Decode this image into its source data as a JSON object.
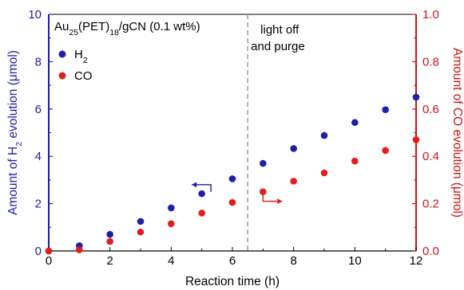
{
  "chart_data": {
    "type": "scatter",
    "title": "",
    "sample_label": {
      "prefix": "Au",
      "sub1": "25",
      "mid": "(PET)",
      "sub2": "18",
      "suffix": "/gCN (0.1 wt%)"
    },
    "xlabel": "Reaction time (h)",
    "ylabel_left": {
      "pre": "Amount of H",
      "sub": "2",
      "post": " evolution (μmol)"
    },
    "ylabel_right": "Amount of CO evolution (μmol)",
    "xlim": [
      0,
      12
    ],
    "ylim_left": [
      0,
      10
    ],
    "ylim_right": [
      0,
      1.0
    ],
    "x_ticks": [
      "0",
      "2",
      "4",
      "6",
      "8",
      "10",
      "12"
    ],
    "y_left_ticks": [
      "0",
      "2",
      "4",
      "6",
      "8",
      "10"
    ],
    "y_right_ticks": [
      "0.0",
      "0.2",
      "0.4",
      "0.6",
      "0.8",
      "1.0"
    ],
    "grid": false,
    "legend_position": "top-left",
    "legend_entries": [
      {
        "pre": "H",
        "sub": "2",
        "color": "#1f1fa8"
      },
      {
        "pre": "CO",
        "sub": "",
        "color": "#e31c1c"
      }
    ],
    "series": [
      {
        "name": "H2",
        "axis": "left",
        "color": "#1f1fa8",
        "x": [
          0,
          1,
          2,
          3,
          4,
          5,
          6,
          7,
          8,
          9,
          10,
          11,
          12
        ],
        "values": [
          0,
          0.22,
          0.7,
          1.25,
          1.82,
          2.42,
          3.05,
          3.7,
          4.33,
          4.88,
          5.43,
          5.97,
          6.5
        ]
      },
      {
        "name": "CO",
        "axis": "right",
        "color": "#e31c1c",
        "x": [
          0,
          1,
          2,
          3,
          4,
          5,
          6,
          7,
          8,
          9,
          10,
          11,
          12
        ],
        "values": [
          0,
          0.005,
          0.04,
          0.08,
          0.115,
          0.16,
          0.205,
          0.25,
          0.295,
          0.33,
          0.38,
          0.425,
          0.47
        ]
      }
    ],
    "vline": {
      "x": 6.5,
      "color": "#a0a0a0",
      "style": "dashed"
    },
    "annotation": {
      "line1": "light off",
      "line2": "and purge"
    },
    "arrows": [
      {
        "direction": "left",
        "color": "#1f1fa8",
        "x": 5.3,
        "y_left": 2.8
      },
      {
        "direction": "right",
        "color": "#e31c1c",
        "x": 7.0,
        "y_left": 2.1
      }
    ],
    "left_axis_color": "#1f1fa8",
    "right_axis_color": "#cc1414"
  }
}
